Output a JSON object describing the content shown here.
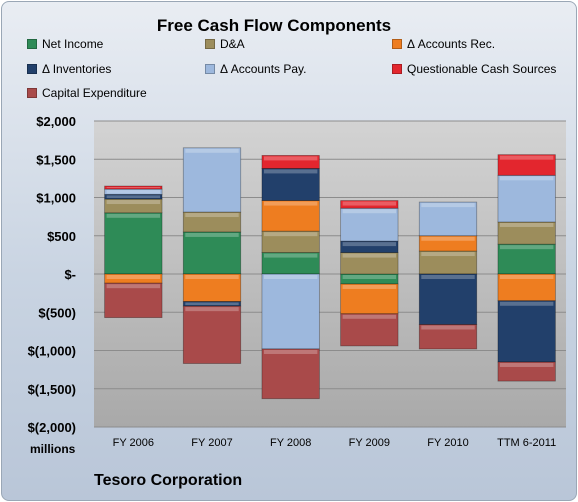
{
  "chart_data": {
    "type": "bar",
    "stacked": true,
    "title": "Free Cash Flow Components",
    "categories": [
      "FY 2006",
      "FY 2007",
      "FY 2008",
      "FY 2009",
      "FY 2010",
      "TTM 6-2011"
    ],
    "y_tick_labels": [
      "$2,000",
      "$1,500",
      "$1,000",
      "$500",
      "$-",
      "$(500)",
      "$(1,000)",
      "$(1,500)",
      "$(2,000)"
    ],
    "y_tick_values": [
      2000,
      1500,
      1000,
      500,
      0,
      -500,
      -1000,
      -1500,
      -2000
    ],
    "ylim": [
      -2000,
      2000
    ],
    "ylabel": "millions",
    "grid": true,
    "legend_position": "top",
    "series": [
      {
        "name": "Net Income",
        "color": "#2e8b57",
        "values": [
          800,
          550,
          280,
          -130,
          0,
          390
        ]
      },
      {
        "name": "D&A",
        "color": "#9c8d5c",
        "values": [
          180,
          260,
          280,
          280,
          300,
          290
        ]
      },
      {
        "name": "Δ Accounts Rec.",
        "color": "#ee7d20",
        "values": [
          -120,
          -360,
          400,
          -390,
          200,
          -350
        ]
      },
      {
        "name": "Δ Inventories",
        "color": "#22406b",
        "values": [
          60,
          -60,
          420,
          150,
          -660,
          -800
        ]
      },
      {
        "name": "Δ Accounts Pay.",
        "color": "#9db8dd",
        "values": [
          70,
          840,
          -980,
          430,
          440,
          610
        ]
      },
      {
        "name": "Questionable Cash Sources",
        "color": "#e3262e",
        "values": [
          40,
          0,
          170,
          100,
          0,
          270
        ]
      },
      {
        "name": "Capital Expenditure",
        "color": "#a94a4a",
        "values": [
          -450,
          -750,
          -650,
          -420,
          -320,
          -250
        ]
      }
    ]
  },
  "footer": {
    "company": "Tesoro Corporation"
  }
}
